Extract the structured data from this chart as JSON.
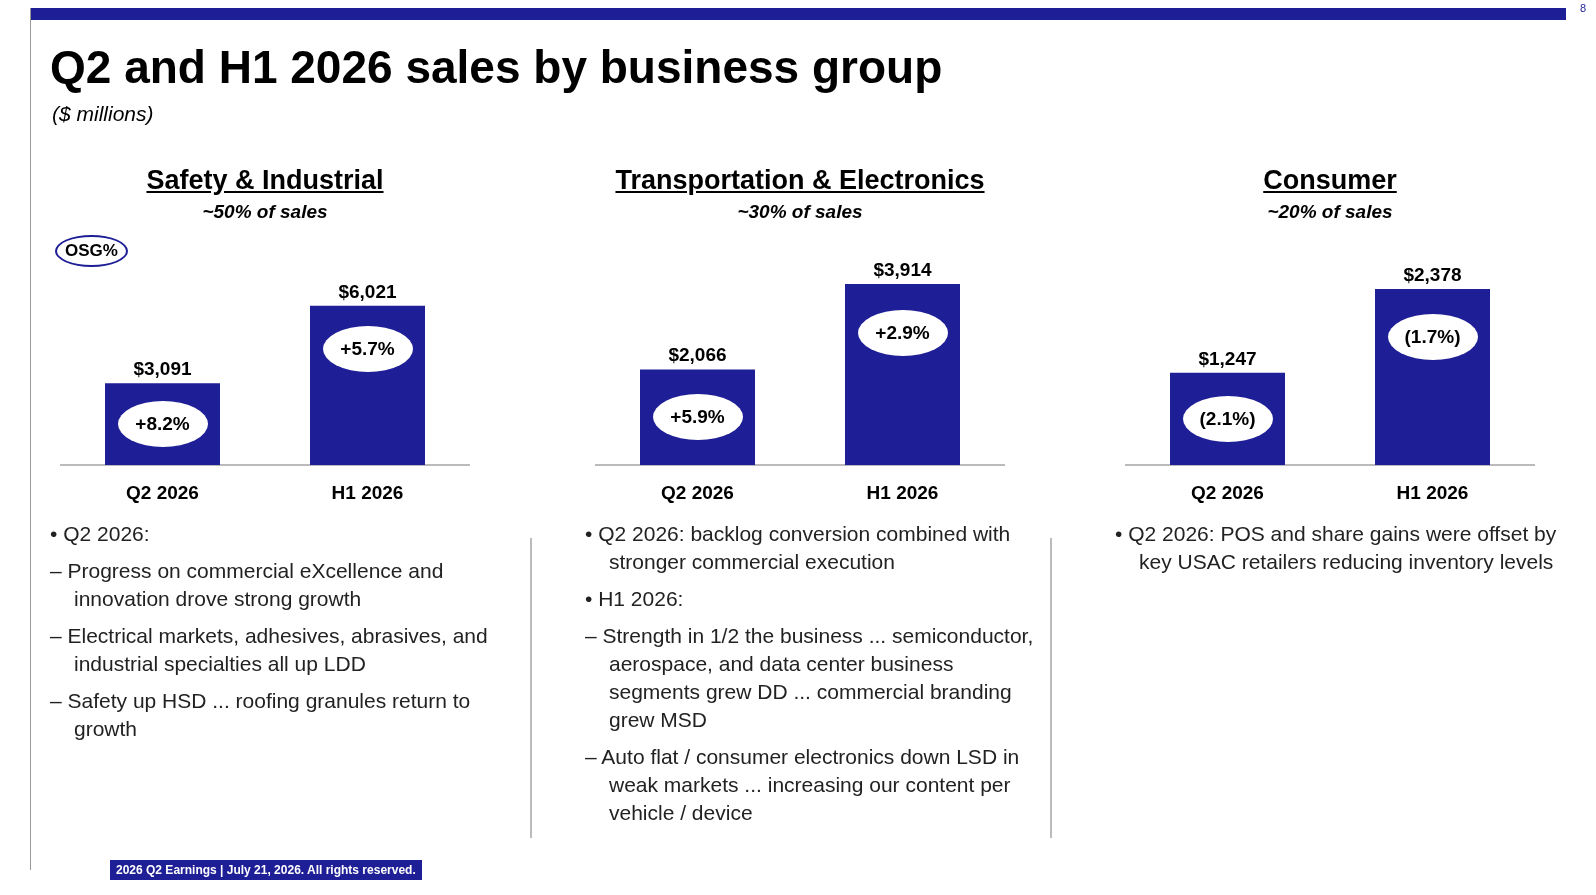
{
  "chart_data": [
    {
      "type": "other",
      "title": "Q2 and H1 2026 sales by business group",
      "subtitle": "($ millions)",
      "annotations": [
        "2026 Q2 Earnings | July 21, 2026. All rights reserved.",
        "8"
      ]
    },
    {
      "type": "bar",
      "title": "Safety & Industrial",
      "subtitle": "~50% of sales",
      "legend_title": "OSG%",
      "categories": [
        "Q2 2026",
        "H1 2026"
      ],
      "values": [
        3091,
        6021
      ],
      "color": "#1e1e96",
      "value_labels": [
        "$3,091",
        "$6,021"
      ],
      "annotations": [
        "+8.2%",
        "+5.7%",
        "• Q2 2026:",
        "– Progress on commercial eXcellence and innovation drove strong growth",
        "– Electrical markets, adhesives, abrasives, and industrial specialties all up LDD",
        "– Safety up HSD ... roofing granules return to growth"
      ]
    },
    {
      "type": "bar",
      "title": "Transportation & Electronics",
      "subtitle": "~30% of sales",
      "categories": [
        "Q2 2026",
        "H1 2026"
      ],
      "values": [
        2066,
        3914
      ],
      "color": "#1e1e96",
      "value_labels": [
        "$2,066",
        "$3,914"
      ],
      "annotations": [
        "+5.9%",
        "+2.9%",
        "• Q2 2026: backlog conversion combined with stronger commercial execution",
        "• H1 2026:",
        "– Strength in 1/2 the business ... semiconductor, aerospace, and data center business segments grew DD ... commercial branding grew MSD",
        "– Auto flat / consumer electronics down LSD in weak markets ... increasing our content per vehicle / device"
      ]
    },
    {
      "type": "bar",
      "title": "Consumer",
      "subtitle": "~20% of sales",
      "categories": [
        "Q2 2026",
        "H1 2026"
      ],
      "values": [
        1247,
        2378
      ],
      "color": "#1e1e96",
      "value_labels": [
        "$1,247",
        "$2,378"
      ],
      "annotations": [
        "(2.1%)",
        "(1.7%)",
        "• Q2 2026: POS and share gains were offset by key USAC retailers reducing inventory levels"
      ]
    }
  ]
}
